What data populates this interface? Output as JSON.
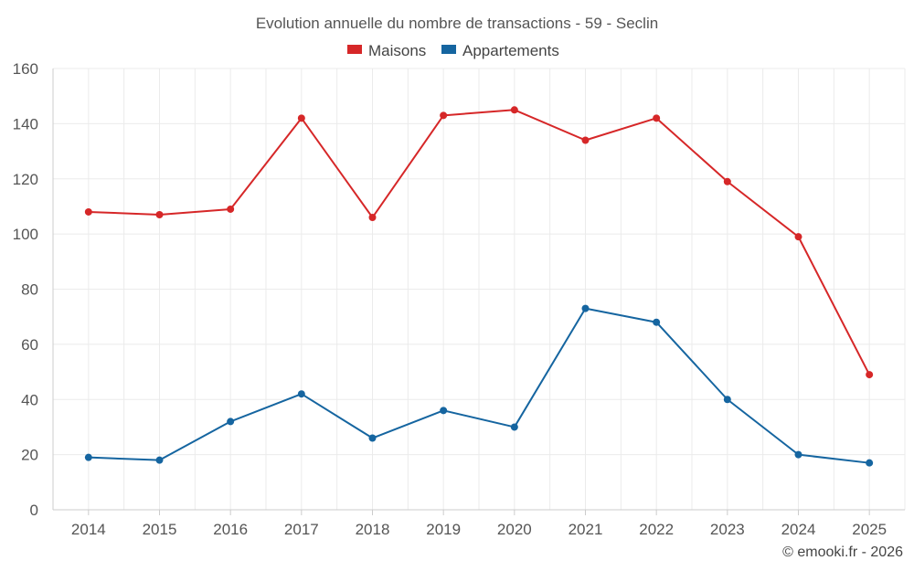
{
  "chart_data": {
    "type": "line",
    "title": "Evolution annuelle du nombre de transactions - 59 - Seclin",
    "categories": [
      "2014",
      "2015",
      "2016",
      "2017",
      "2018",
      "2019",
      "2020",
      "2021",
      "2022",
      "2023",
      "2024",
      "2025"
    ],
    "series": [
      {
        "name": "Maisons",
        "color": "#d62728",
        "values": [
          108,
          107,
          109,
          142,
          106,
          143,
          145,
          134,
          142,
          119,
          99,
          49
        ]
      },
      {
        "name": "Appartements",
        "color": "#1565a0",
        "values": [
          19,
          18,
          32,
          42,
          26,
          36,
          30,
          73,
          68,
          40,
          20,
          17
        ]
      }
    ],
    "ylim": [
      0,
      160
    ],
    "yticks": [
      0,
      20,
      40,
      60,
      80,
      100,
      120,
      140,
      160
    ],
    "xlabel": "",
    "ylabel": "",
    "grid": true,
    "legend": "top-center"
  },
  "credit": "© emooki.fr - 2026"
}
